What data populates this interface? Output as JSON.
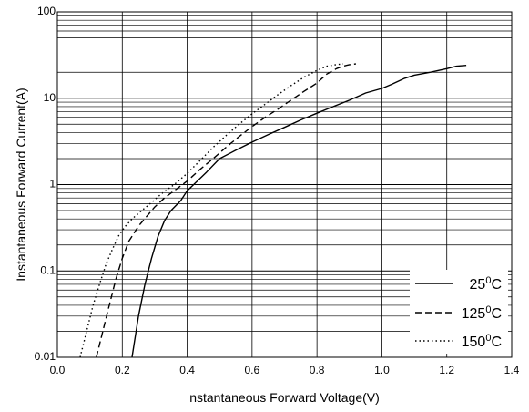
{
  "chart_data": {
    "type": "line",
    "title": "",
    "xlabel": "nstantaneous Forward Voltage(V)",
    "ylabel": "Instantaneous Forward Current(A)",
    "xlim": [
      0.0,
      1.4
    ],
    "ylim": [
      0.01,
      100
    ],
    "y_scale": "log",
    "grid": true,
    "legend_position": "bottom-right",
    "x_ticks": [
      "0.0",
      "0.2",
      "0.4",
      "0.6",
      "0.8",
      "1.0",
      "1.2",
      "1.4"
    ],
    "y_ticks": [
      "0.01",
      "0.1",
      "1",
      "10",
      "100"
    ],
    "series": [
      {
        "name": "25⁰C",
        "legend_base": "25",
        "legend_sup": "0",
        "legend_unit": "C",
        "style": "solid",
        "x": [
          0.23,
          0.25,
          0.27,
          0.29,
          0.31,
          0.33,
          0.35,
          0.38,
          0.4,
          0.42,
          0.46,
          0.5,
          0.55,
          0.6,
          0.65,
          0.7,
          0.75,
          0.8,
          0.85,
          0.9,
          0.95,
          1.0,
          1.03,
          1.07,
          1.1,
          1.15,
          1.2,
          1.23,
          1.26
        ],
        "y": [
          0.01,
          0.03,
          0.07,
          0.14,
          0.25,
          0.38,
          0.5,
          0.65,
          0.85,
          1.0,
          1.4,
          2.0,
          2.5,
          3.1,
          3.8,
          4.6,
          5.6,
          6.7,
          8.0,
          9.5,
          11.5,
          13.0,
          14.5,
          17.0,
          18.5,
          20.0,
          22.0,
          23.5,
          24.0
        ]
      },
      {
        "name": "125⁰C",
        "legend_base": "125",
        "legend_sup": "0",
        "legend_unit": "C",
        "style": "dashed",
        "x": [
          0.12,
          0.14,
          0.16,
          0.18,
          0.2,
          0.22,
          0.25,
          0.28,
          0.3,
          0.33,
          0.36,
          0.4,
          0.44,
          0.48,
          0.52,
          0.56,
          0.6,
          0.64,
          0.68,
          0.72,
          0.76,
          0.8,
          0.83,
          0.86,
          0.88,
          0.9,
          0.92
        ],
        "y": [
          0.01,
          0.02,
          0.04,
          0.08,
          0.14,
          0.22,
          0.33,
          0.45,
          0.55,
          0.7,
          0.85,
          1.1,
          1.5,
          2.0,
          2.7,
          3.6,
          4.7,
          6.0,
          7.5,
          9.5,
          12.0,
          15.0,
          19.0,
          22.0,
          23.5,
          24.5,
          25.0
        ]
      },
      {
        "name": "150⁰C",
        "legend_base": "150",
        "legend_sup": "0",
        "legend_unit": "C",
        "style": "dotted",
        "x": [
          0.07,
          0.09,
          0.11,
          0.13,
          0.15,
          0.17,
          0.19,
          0.21,
          0.23,
          0.26,
          0.29,
          0.32,
          0.36,
          0.4,
          0.44,
          0.48,
          0.52,
          0.56,
          0.6,
          0.64,
          0.68,
          0.72,
          0.76,
          0.8,
          0.83,
          0.86,
          0.88
        ],
        "y": [
          0.01,
          0.02,
          0.04,
          0.07,
          0.12,
          0.18,
          0.26,
          0.33,
          0.4,
          0.5,
          0.62,
          0.78,
          1.0,
          1.35,
          1.9,
          2.7,
          3.7,
          5.0,
          6.6,
          8.5,
          11.0,
          14.0,
          17.5,
          21.0,
          23.5,
          24.5,
          25.0
        ]
      }
    ]
  }
}
